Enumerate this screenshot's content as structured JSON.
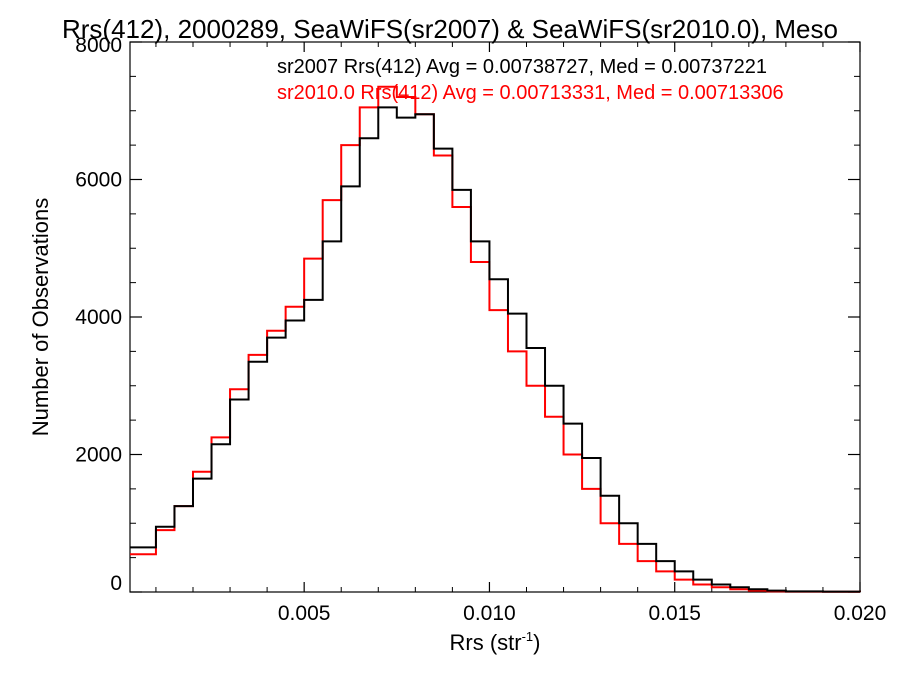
{
  "chart_data": {
    "type": "line",
    "title": "Rrs(412), 2000289, SeaWiFS(sr2007) & SeaWiFS(sr2010.0), Meso",
    "xlabel_main": "Rrs (str",
    "xlabel_sup": "-1",
    "xlabel_tail": ")",
    "ylabel": "Number of Observations",
    "xlim": [
      0.0003,
      0.02
    ],
    "ylim": [
      0,
      8000
    ],
    "xticks": [
      0.005,
      0.01,
      0.015,
      0.02
    ],
    "xtick_labels": [
      "0.005",
      "0.010",
      "0.015",
      "0.020"
    ],
    "yticks": [
      0,
      2000,
      4000,
      6000,
      8000
    ],
    "ytick_labels": [
      "0",
      "2000",
      "4000",
      "6000",
      "8000"
    ],
    "grid": false,
    "legend_placement": "top-right",
    "colors": {
      "sr2007": "#000000",
      "sr2010": "#ff0000"
    },
    "series": [
      {
        "name": "sr2007 Rrs(412) Avg = 0.00738727, Med = 0.00737221",
        "color": "#000000",
        "x": [
          0.0003,
          0.001,
          0.0015,
          0.002,
          0.0025,
          0.003,
          0.0035,
          0.004,
          0.0045,
          0.005,
          0.0055,
          0.006,
          0.0065,
          0.007,
          0.0075,
          0.008,
          0.0085,
          0.009,
          0.0095,
          0.01,
          0.0105,
          0.011,
          0.0115,
          0.012,
          0.0125,
          0.013,
          0.0135,
          0.014,
          0.0145,
          0.015,
          0.0155,
          0.016,
          0.0165,
          0.017,
          0.0175,
          0.018,
          0.019,
          0.02
        ],
        "y": [
          650,
          950,
          1250,
          1650,
          2150,
          2800,
          3350,
          3700,
          3950,
          4250,
          5100,
          5900,
          6600,
          7050,
          6900,
          6950,
          6450,
          5850,
          5100,
          4550,
          4050,
          3550,
          3000,
          2450,
          1950,
          1400,
          1000,
          700,
          450,
          300,
          180,
          110,
          70,
          40,
          20,
          10,
          5,
          3
        ]
      },
      {
        "name": "sr2010.0 Rrs(412) Avg = 0.00713331, Med = 0.00713306",
        "color": "#ff0000",
        "x": [
          0.0003,
          0.001,
          0.0015,
          0.002,
          0.0025,
          0.003,
          0.0035,
          0.004,
          0.0045,
          0.005,
          0.0055,
          0.006,
          0.0065,
          0.007,
          0.0075,
          0.008,
          0.0085,
          0.009,
          0.0095,
          0.01,
          0.0105,
          0.011,
          0.0115,
          0.012,
          0.0125,
          0.013,
          0.0135,
          0.014,
          0.0145,
          0.015,
          0.0155,
          0.016,
          0.0165,
          0.017,
          0.0175,
          0.018,
          0.019,
          0.02
        ],
        "y": [
          550,
          900,
          1250,
          1750,
          2250,
          2950,
          3450,
          3800,
          4150,
          4850,
          5700,
          6500,
          7050,
          7350,
          7200,
          6950,
          6350,
          5600,
          4800,
          4100,
          3500,
          3000,
          2550,
          2000,
          1500,
          1000,
          700,
          450,
          300,
          180,
          110,
          70,
          40,
          20,
          10,
          5,
          3,
          2
        ]
      }
    ]
  }
}
